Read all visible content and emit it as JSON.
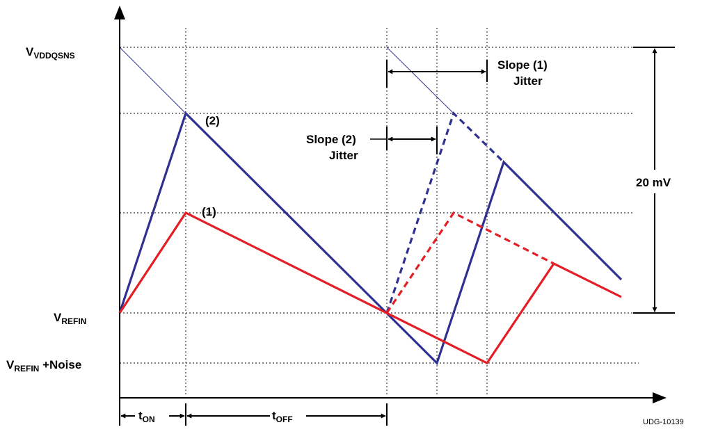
{
  "labels": {
    "v_vddqsns_main": "V",
    "v_vddqsns_sub": "VDDQSNS",
    "v_refin_main": "V",
    "v_refin_sub": "REFIN",
    "v_refin_noise_main": "V",
    "v_refin_noise_sub": "REFIN",
    "v_refin_noise_suffix": " +Noise",
    "point_2": "(2)",
    "point_1": "(1)",
    "slope1_line1": "Slope (1)",
    "slope1_line2": "Jitter",
    "slope2_line1": "Slope (2)",
    "slope2_line2": "Jitter",
    "amplitude": "20 mV",
    "t_on_main": "t",
    "t_on_sub": "ON",
    "t_off_main": "t",
    "t_off_sub": "OFF",
    "figure_id": "UDG-10139"
  },
  "colors": {
    "slope2_trace": "#2e3192",
    "slope1_trace": "#e31e24",
    "axes": "#000000"
  }
}
